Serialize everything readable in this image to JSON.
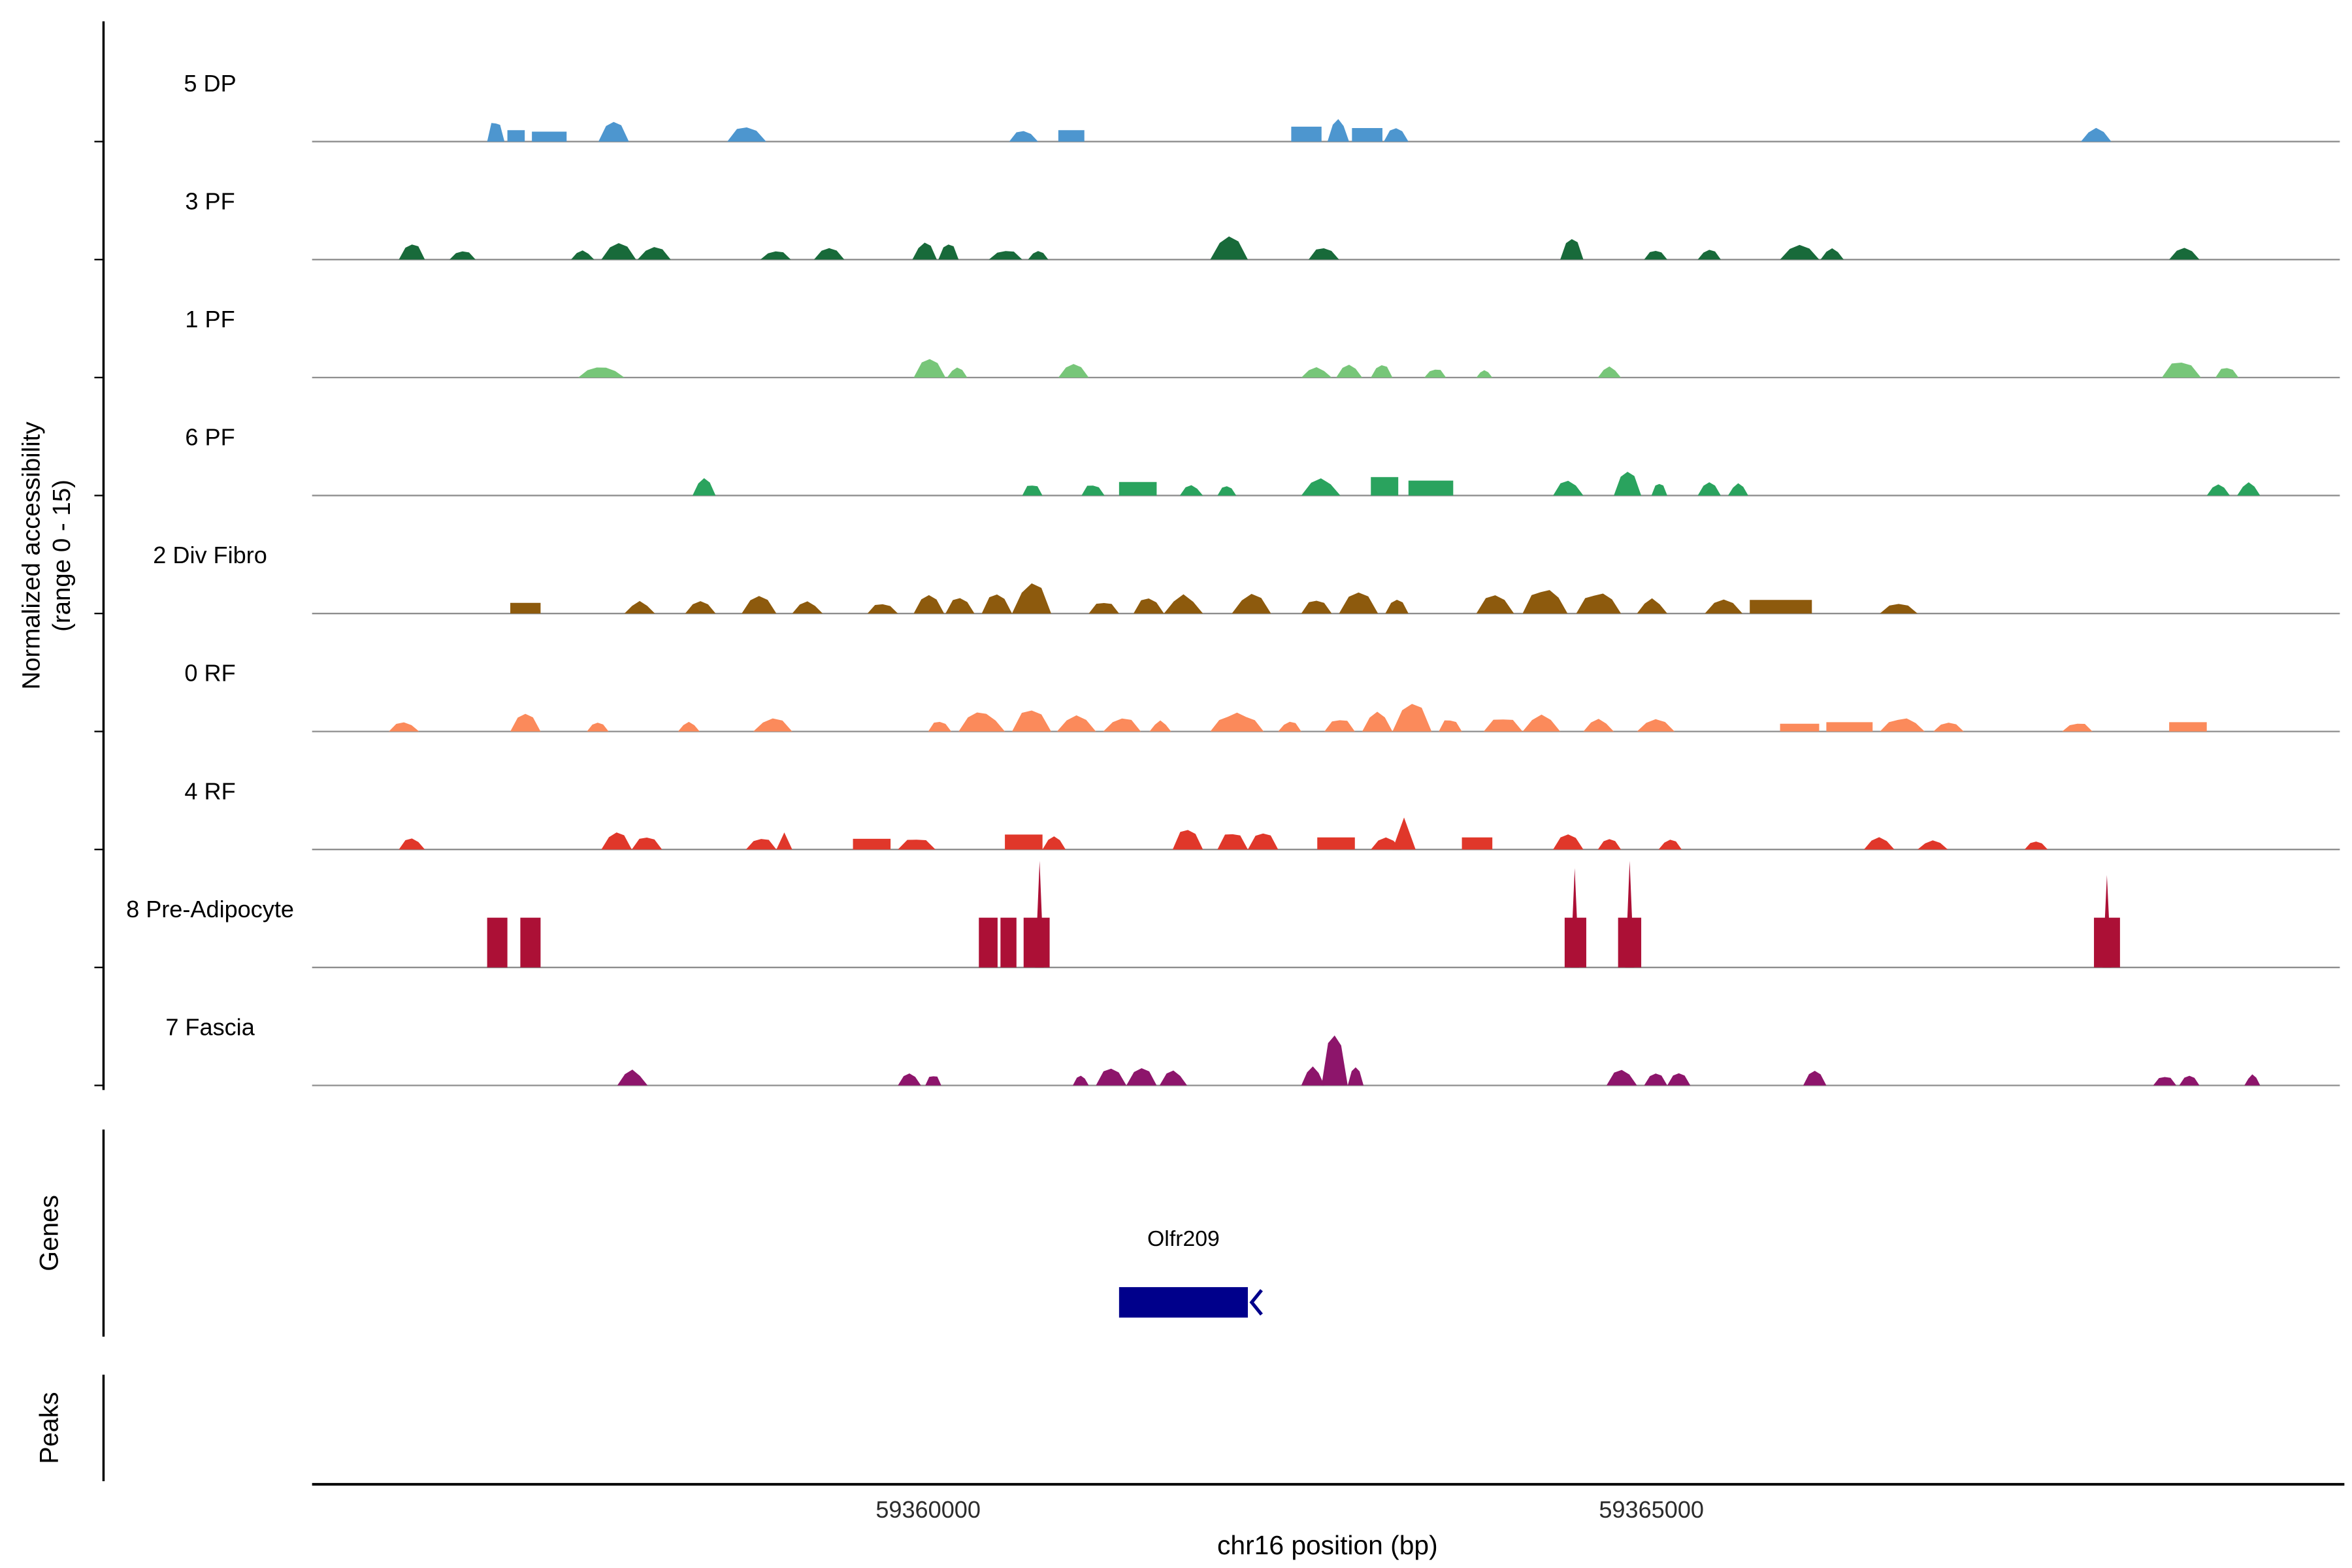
{
  "figure": {
    "background": "#ffffff",
    "y_axis_label_line1": "Normalized accessibility",
    "y_axis_label_line2": "(range 0 - 15)",
    "sections": {
      "genes_label": "Genes",
      "peaks_label": "Peaks"
    },
    "x_axis": {
      "title": "chr16 position (bp)",
      "ticks": [
        {
          "bp": 59360000,
          "label": "59360000"
        },
        {
          "bp": 59365000,
          "label": "59365000"
        }
      ]
    },
    "colors": {
      "baseline_gray": "#8E8E8E",
      "gene_navy": "#00008B"
    }
  },
  "chart_data": {
    "type": "area",
    "title": "",
    "xlabel": "chr16 position (bp)",
    "ylabel": "Normalized accessibility (range 0 - 15)",
    "x_domain": [
      59355740,
      59369760
    ],
    "x_ticks": [
      59360000,
      59365000
    ],
    "y_range_per_track": [
      0,
      15
    ],
    "legend": "none",
    "grid": false,
    "tracks": [
      {
        "name": "5 DP",
        "color": "#4D96CF",
        "segments": [
          [
            59356950,
            59357070,
            3.2
          ],
          [
            59357090,
            59357210,
            1.6,
            "b"
          ],
          [
            59357260,
            59357500,
            1.4,
            "b"
          ],
          [
            59357720,
            59357930,
            2.8
          ],
          [
            59358610,
            59358880,
            2.3
          ],
          [
            59360560,
            59360760,
            1.6
          ],
          [
            59360900,
            59361080,
            1.6,
            "b"
          ],
          [
            59362510,
            59362720,
            2.1,
            "b"
          ],
          [
            59362760,
            59362910,
            3.2
          ],
          [
            59362930,
            59363140,
            1.9,
            "b"
          ],
          [
            59363150,
            59363320,
            2.1
          ],
          [
            59367970,
            59368180,
            1.9
          ]
        ]
      },
      {
        "name": "3 PF",
        "color": "#186A3A",
        "segments": [
          [
            59356340,
            59356520,
            2.6
          ],
          [
            59356690,
            59356870,
            1.3
          ],
          [
            59357530,
            59357690,
            1.3
          ],
          [
            59357740,
            59357980,
            2.2
          ],
          [
            59357990,
            59358220,
            1.8
          ],
          [
            59358840,
            59359050,
            1.3
          ],
          [
            59359210,
            59359420,
            1.7
          ],
          [
            59359890,
            59360060,
            2.6
          ],
          [
            59360070,
            59360210,
            2.3
          ],
          [
            59360420,
            59360650,
            1.5
          ],
          [
            59360690,
            59360830,
            1.3
          ],
          [
            59361950,
            59362210,
            3.6
          ],
          [
            59362630,
            59362840,
            1.7
          ],
          [
            59364370,
            59364530,
            3.0
          ],
          [
            59364950,
            59365110,
            1.3
          ],
          [
            59365320,
            59365480,
            1.5
          ],
          [
            59365890,
            59366160,
            2.3
          ],
          [
            59366170,
            59366330,
            1.5
          ],
          [
            59368580,
            59368790,
            1.7
          ]
        ]
      },
      {
        "name": "1 PF",
        "color": "#77C679",
        "segments": [
          [
            59357580,
            59357900,
            1.5
          ],
          [
            59359900,
            59360120,
            3.0
          ],
          [
            59360130,
            59360270,
            1.4
          ],
          [
            59360900,
            59361110,
            1.9
          ],
          [
            59362580,
            59362790,
            1.5
          ],
          [
            59362820,
            59363000,
            1.7
          ],
          [
            59363060,
            59363210,
            1.9
          ],
          [
            59363430,
            59363580,
            1.3
          ],
          [
            59363790,
            59363900,
            1.1
          ],
          [
            59364630,
            59364790,
            1.5
          ],
          [
            59368530,
            59368800,
            2.4
          ],
          [
            59368900,
            59369060,
            1.5
          ]
        ]
      },
      {
        "name": "6 PF",
        "color": "#2AA35E",
        "segments": [
          [
            59358370,
            59358530,
            2.6
          ],
          [
            59360650,
            59360790,
            1.7
          ],
          [
            59361060,
            59361220,
            1.7
          ],
          [
            59361320,
            59361580,
            1.9,
            "b"
          ],
          [
            59361740,
            59361900,
            1.5
          ],
          [
            59362000,
            59362130,
            1.5
          ],
          [
            59362580,
            59362850,
            2.6
          ],
          [
            59363060,
            59363250,
            2.6,
            "b"
          ],
          [
            59363320,
            59363630,
            2.1,
            "b"
          ],
          [
            59364320,
            59364530,
            2.1
          ],
          [
            59364740,
            59364930,
            3.6
          ],
          [
            59365000,
            59365110,
            1.7
          ],
          [
            59365320,
            59365480,
            1.9
          ],
          [
            59365530,
            59365670,
            1.7
          ],
          [
            59368840,
            59369000,
            1.7
          ],
          [
            59369050,
            59369210,
            1.9
          ]
        ]
      },
      {
        "name": "2 Div Fibro",
        "color": "#8D5A0D",
        "segments": [
          [
            59357110,
            59357320,
            1.5,
            "b"
          ],
          [
            59357900,
            59358110,
            1.7
          ],
          [
            59358320,
            59358530,
            1.7
          ],
          [
            59358710,
            59358950,
            2.6
          ],
          [
            59359060,
            59359270,
            1.7
          ],
          [
            59359580,
            59359790,
            1.5
          ],
          [
            59359900,
            59360110,
            2.6
          ],
          [
            59360120,
            59360320,
            2.4
          ],
          [
            59360370,
            59360580,
            3.0
          ],
          [
            59360580,
            59360850,
            4.7
          ],
          [
            59361110,
            59361320,
            1.9
          ],
          [
            59361420,
            59361630,
            2.4
          ],
          [
            59361630,
            59361900,
            2.6
          ],
          [
            59362100,
            59362370,
            3.0
          ],
          [
            59362580,
            59362790,
            2.1
          ],
          [
            59362840,
            59363110,
            3.0
          ],
          [
            59363160,
            59363320,
            2.1
          ],
          [
            59363790,
            59364050,
            2.8
          ],
          [
            59364110,
            59364420,
            3.6
          ],
          [
            59364480,
            59364790,
            3.0
          ],
          [
            59364900,
            59365110,
            2.1
          ],
          [
            59365370,
            59365630,
            1.9
          ],
          [
            59365680,
            59366110,
            1.9,
            "b"
          ],
          [
            59366580,
            59366840,
            1.5
          ]
        ]
      },
      {
        "name": "0 RF",
        "color": "#FB8A5B",
        "segments": [
          [
            59356270,
            59356480,
            1.3
          ],
          [
            59357110,
            59357320,
            2.6
          ],
          [
            59357640,
            59357790,
            1.5
          ],
          [
            59358270,
            59358420,
            1.3
          ],
          [
            59358790,
            59359060,
            1.9
          ],
          [
            59360000,
            59360160,
            1.5
          ],
          [
            59360210,
            59360530,
            2.8
          ],
          [
            59360580,
            59360850,
            3.6
          ],
          [
            59360890,
            59361160,
            2.4
          ],
          [
            59361210,
            59361470,
            2.1
          ],
          [
            59361530,
            59361680,
            1.5
          ],
          [
            59361950,
            59362320,
            2.6
          ],
          [
            59362420,
            59362580,
            1.5
          ],
          [
            59362740,
            59362950,
            1.9
          ],
          [
            59363000,
            59363210,
            2.8
          ],
          [
            59363210,
            59363480,
            4.3
          ],
          [
            59363530,
            59363690,
            1.9
          ],
          [
            59363840,
            59364110,
            2.1
          ],
          [
            59364110,
            59364370,
            2.4
          ],
          [
            59364530,
            59364740,
            1.7
          ],
          [
            59364900,
            59365160,
            1.7
          ],
          [
            59365890,
            59366160,
            1.1,
            "b"
          ],
          [
            59366210,
            59366530,
            1.3,
            "b"
          ],
          [
            59366580,
            59366890,
            1.9
          ],
          [
            59366950,
            59367160,
            1.3
          ],
          [
            59367840,
            59368050,
            1.3
          ],
          [
            59368580,
            59368840,
            1.3,
            "b"
          ]
        ]
      },
      {
        "name": "4 RF",
        "color": "#E0372A",
        "segments": [
          [
            59356340,
            59356520,
            1.7
          ],
          [
            59357740,
            59357950,
            2.6
          ],
          [
            59357950,
            59358160,
            1.9
          ],
          [
            59358740,
            59358950,
            1.7
          ],
          [
            59358950,
            59359060,
            2.4,
            "s"
          ],
          [
            59359480,
            59359740,
            1.5,
            "b"
          ],
          [
            59359790,
            59360050,
            1.7
          ],
          [
            59360530,
            59360790,
            2.1,
            "b"
          ],
          [
            59360790,
            59360950,
            2.1
          ],
          [
            59361690,
            59361900,
            3.4
          ],
          [
            59362000,
            59362210,
            2.6
          ],
          [
            59362210,
            59362420,
            2.8
          ],
          [
            59362690,
            59362950,
            1.7,
            "b"
          ],
          [
            59363060,
            59363270,
            1.7
          ],
          [
            59363210,
            59363370,
            4.5,
            "s"
          ],
          [
            59363690,
            59363900,
            1.7,
            "b"
          ],
          [
            59364320,
            59364530,
            2.4
          ],
          [
            59364630,
            59364790,
            1.5
          ],
          [
            59365050,
            59365210,
            1.5
          ],
          [
            59366470,
            59366680,
            1.7
          ],
          [
            59366840,
            59367050,
            1.3
          ],
          [
            59367580,
            59367740,
            1.3
          ]
        ]
      },
      {
        "name": "8 Pre-Adipocyte",
        "color": "#AC1036",
        "segments": [
          [
            59356950,
            59357090,
            7,
            "b"
          ],
          [
            59357180,
            59357320,
            7,
            "b"
          ],
          [
            59360350,
            59360480,
            7,
            "b"
          ],
          [
            59360500,
            59360610,
            7,
            "b"
          ],
          [
            59360660,
            59360840,
            7,
            "b"
          ],
          [
            59360740,
            59360800,
            15,
            "s"
          ],
          [
            59364400,
            59364550,
            7,
            "b"
          ],
          [
            59364440,
            59364500,
            14,
            "s"
          ],
          [
            59364770,
            59364930,
            7,
            "b"
          ],
          [
            59364820,
            59364880,
            15,
            "s"
          ],
          [
            59368060,
            59368240,
            7,
            "b"
          ],
          [
            59368120,
            59368180,
            13,
            "s"
          ]
        ]
      },
      {
        "name": "7 Fascia",
        "color": "#8D156B",
        "segments": [
          [
            59357850,
            59358060,
            2.1
          ],
          [
            59359790,
            59359950,
            1.7
          ],
          [
            59359980,
            59360090,
            1.5
          ],
          [
            59361000,
            59361110,
            1.5
          ],
          [
            59361160,
            59361370,
            2.6
          ],
          [
            59361370,
            59361580,
            2.8
          ],
          [
            59361600,
            59361790,
            2.1
          ],
          [
            59362580,
            59362740,
            2.8
          ],
          [
            59362720,
            59362900,
            7.5
          ],
          [
            59362900,
            59363010,
            2.6
          ],
          [
            59364690,
            59364900,
            2.4
          ],
          [
            59364950,
            59365110,
            2.1
          ],
          [
            59365110,
            59365270,
            1.7
          ],
          [
            59366050,
            59366210,
            2.4
          ],
          [
            59368470,
            59368630,
            1.5
          ],
          [
            59368650,
            59368790,
            1.7
          ],
          [
            59369100,
            59369210,
            1.5
          ]
        ]
      }
    ],
    "genes": [
      {
        "name": "Olfr209",
        "start": 59361320,
        "end": 59362210,
        "strand": "-",
        "color": "#00008B"
      }
    ],
    "peaks": []
  }
}
